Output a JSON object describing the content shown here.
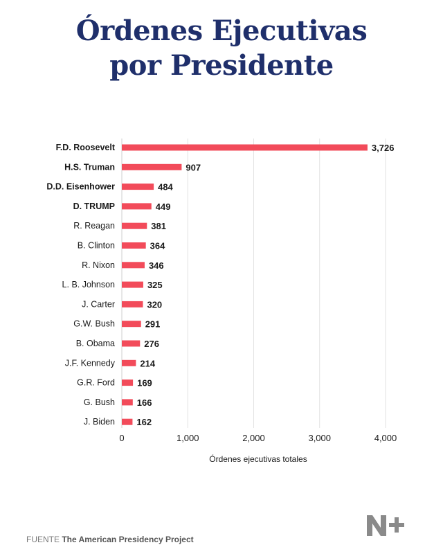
{
  "title_line1": "Órdenes Ejecutivas",
  "title_line2": "por Presidente",
  "chart_data": {
    "type": "bar",
    "orientation": "horizontal",
    "categories": [
      "F.D. Roosevelt",
      "H.S. Truman",
      "D.D. Eisenhower",
      "D. TRUMP",
      "R. Reagan",
      "B. Clinton",
      "R. Nixon",
      "L. B. Johnson",
      "J. Carter",
      "G.W. Bush",
      "B. Obama",
      "J.F. Kennedy",
      "G.R. Ford",
      "G. Bush",
      "J. Biden"
    ],
    "values": [
      3726,
      907,
      484,
      449,
      381,
      364,
      346,
      325,
      320,
      291,
      276,
      214,
      169,
      166,
      162
    ],
    "value_labels": [
      "3,726",
      "907",
      "484",
      "449",
      "381",
      "364",
      "346",
      "325",
      "320",
      "291",
      "276",
      "214",
      "169",
      "166",
      "162"
    ],
    "bold_categories": [
      "F.D. Roosevelt",
      "H.S. Truman",
      "D.D. Eisenhower",
      "D. TRUMP"
    ],
    "xlabel": "Órdenes ejecutivas totales",
    "ylabel": "",
    "xlim": [
      0,
      4000
    ],
    "xticks": [
      0,
      1000,
      2000,
      3000,
      4000
    ],
    "xtick_labels": [
      "0",
      "1,000",
      "2,000",
      "3,000",
      "4,000"
    ],
    "grid": "vertical",
    "bar_color": "#f24b5a"
  },
  "footer": {
    "prefix": "FUENTE",
    "source": "The American Presidency Project"
  },
  "logo": {
    "name": "n-plus-logo",
    "color": "#8a8a8a"
  }
}
